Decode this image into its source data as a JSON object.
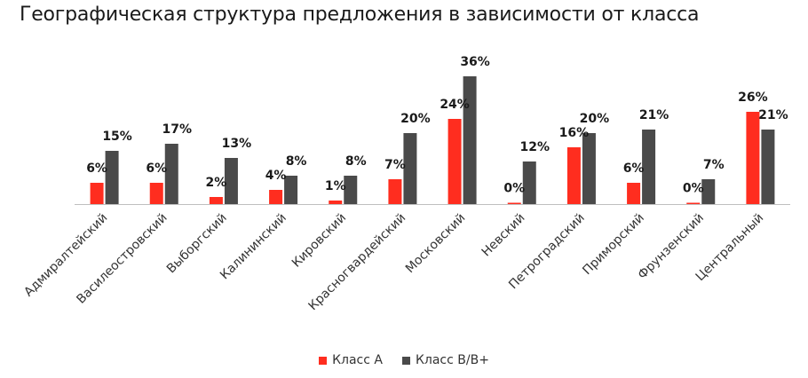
{
  "colors": {
    "class_a": "#ff2d1f",
    "class_b": "#4a4a4a",
    "axis": "#bfbfbf"
  },
  "chart_data": {
    "type": "bar",
    "title": "Географическая структура предложения в зависимости от класса",
    "categories": [
      "Адмиралтейский",
      "Василеостровский",
      "Выборгский",
      "Калининский",
      "Кировский",
      "Красногвардейский",
      "Московский",
      "Невский",
      "Петроградский",
      "Приморский",
      "Фрунзенский",
      "Центральный"
    ],
    "series": [
      {
        "name": "Класс А",
        "values": [
          6,
          6,
          2,
          4,
          1,
          7,
          24,
          0,
          16,
          6,
          0,
          26
        ],
        "labels": [
          "6%",
          "6%",
          "2%",
          "4%",
          "1%",
          "7%",
          "24%",
          "0%",
          "16%",
          "6%",
          "0%",
          "26%"
        ]
      },
      {
        "name": "Класс В/В+",
        "values": [
          15,
          17,
          13,
          8,
          8,
          20,
          36,
          12,
          20,
          21,
          7,
          21
        ],
        "labels": [
          "15%",
          "17%",
          "13%",
          "8%",
          "8%",
          "20%",
          "36%",
          "12%",
          "20%",
          "21%",
          "7%",
          "21%"
        ]
      }
    ],
    "ylim": [
      0,
      36
    ],
    "legend_position": "bottom-center",
    "grid": false
  }
}
